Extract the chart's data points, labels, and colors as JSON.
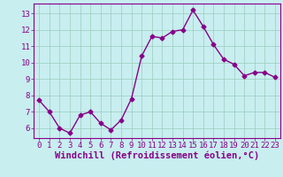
{
  "x": [
    0,
    1,
    2,
    3,
    4,
    5,
    6,
    7,
    8,
    9,
    10,
    11,
    12,
    13,
    14,
    15,
    16,
    17,
    18,
    19,
    20,
    21,
    22,
    23
  ],
  "y": [
    7.7,
    7.0,
    6.0,
    5.7,
    6.8,
    7.0,
    6.3,
    5.9,
    6.5,
    7.8,
    10.4,
    11.6,
    11.5,
    11.9,
    12.0,
    13.2,
    12.2,
    11.1,
    10.2,
    9.9,
    9.2,
    9.4,
    9.4,
    9.1
  ],
  "line_color": "#880088",
  "marker": "D",
  "marker_size": 2.5,
  "bg_color": "#c8eef0",
  "grid_color": "#99ccbb",
  "xlabel": "Windchill (Refroidissement éolien,°C)",
  "xlim": [
    -0.5,
    23.5
  ],
  "ylim": [
    5.4,
    13.6
  ],
  "yticks": [
    6,
    7,
    8,
    9,
    10,
    11,
    12,
    13
  ],
  "xticks": [
    0,
    1,
    2,
    3,
    4,
    5,
    6,
    7,
    8,
    9,
    10,
    11,
    12,
    13,
    14,
    15,
    16,
    17,
    18,
    19,
    20,
    21,
    22,
    23
  ],
  "xlabel_fontsize": 7.5,
  "tick_fontsize": 6.5,
  "line_width": 1.0
}
